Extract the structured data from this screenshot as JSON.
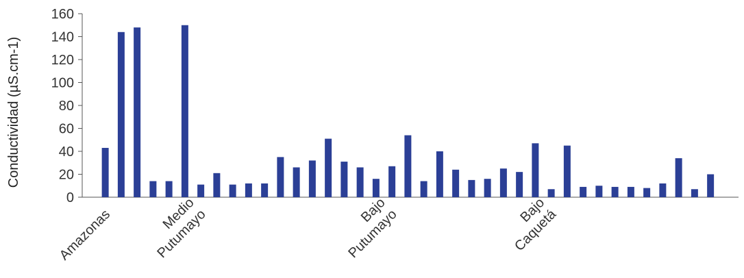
{
  "chart_data": {
    "type": "bar",
    "ylabel": "Conductividad (µS.cm-1)",
    "ylim": [
      0,
      160
    ],
    "yticks": [
      0,
      20,
      40,
      60,
      80,
      100,
      120,
      140,
      160
    ],
    "grid": false,
    "legend": "none",
    "bar_color": "#2b3f96",
    "groups": [
      {
        "label": "Amazonas",
        "lines": [
          "Amazonas"
        ],
        "start_index": 0
      },
      {
        "label": "Medio Putumayo",
        "lines": [
          "Medio",
          "Putumayo"
        ],
        "start_index": 6
      },
      {
        "label": "Bajo Putumayo",
        "lines": [
          "Bajo",
          "Putumayo"
        ],
        "start_index": 18
      },
      {
        "label": "Bajo Caquetá",
        "lines": [
          "Bajo",
          "Caquetá"
        ],
        "start_index": 28
      }
    ],
    "values": [
      43,
      144,
      148,
      14,
      14,
      150,
      11,
      21,
      11,
      12,
      12,
      35,
      26,
      32,
      51,
      31,
      26,
      16,
      27,
      54,
      14,
      40,
      24,
      15,
      16,
      25,
      22,
      47,
      7,
      45,
      9,
      10,
      9,
      9,
      8,
      12,
      34,
      7,
      20
    ]
  }
}
